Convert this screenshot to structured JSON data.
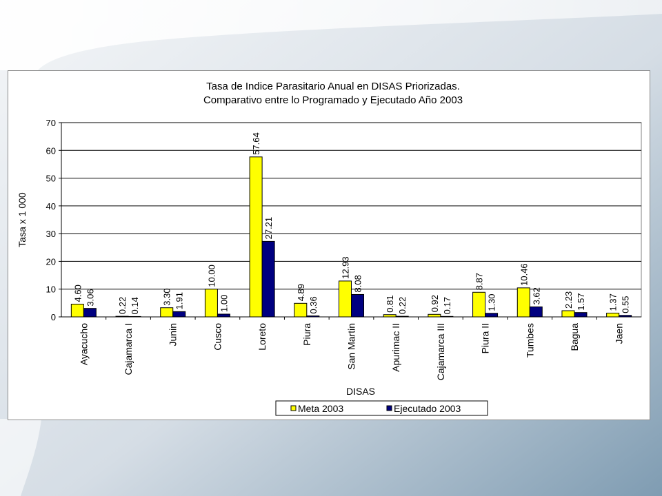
{
  "chart_data": {
    "type": "bar",
    "title": "Tasa de Indice Parasitario Anual en DISAS Priorizadas.",
    "subtitle": "Comparativo entre lo Programado y Ejecutado Año 2003",
    "xlabel": "DISAS",
    "ylabel": "Tasa x 1 000",
    "ylim": [
      0,
      70
    ],
    "yticks": [
      0,
      10,
      20,
      30,
      40,
      50,
      60,
      70
    ],
    "grid": true,
    "legend_position": "bottom",
    "categories": [
      "Ayacucho",
      "Cajamarca I",
      "Junin",
      "Cusco",
      "Loreto",
      "Piura",
      "San Martin",
      "Apurimac II",
      "Cajamarca III",
      "Piura II",
      "Tumbes",
      "Bagua",
      "Jaen"
    ],
    "series": [
      {
        "name": "Meta 2003",
        "color": "#ffff00",
        "values": [
          4.6,
          0.22,
          3.3,
          10.0,
          57.64,
          4.89,
          12.93,
          0.81,
          0.92,
          8.87,
          10.46,
          2.23,
          1.37
        ],
        "labels": [
          "4.60",
          "0.22",
          "3.30",
          "10.00",
          "57.64",
          "4.89",
          "12.93",
          "0.81",
          "0.92",
          "8.87",
          "10.46",
          "2.23",
          "1.37"
        ]
      },
      {
        "name": "Ejecutado 2003",
        "color": "#000080",
        "values": [
          3.06,
          0.14,
          1.91,
          1.0,
          27.21,
          0.36,
          8.08,
          0.22,
          0.17,
          1.3,
          3.62,
          1.57,
          0.55
        ],
        "labels": [
          "3.06",
          "0.14",
          "1.91",
          "1.00",
          "27.21",
          "0.36",
          "8.08",
          "0.22",
          "0.17",
          "1.30",
          "3.62",
          "1.57",
          "0.55"
        ]
      }
    ]
  }
}
